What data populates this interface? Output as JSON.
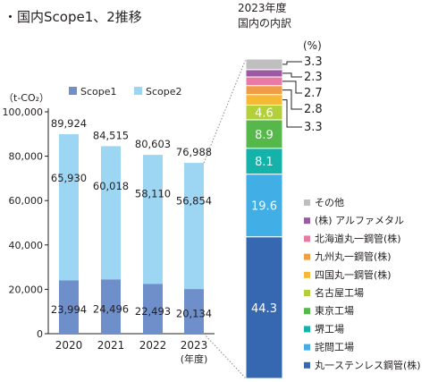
{
  "header": {
    "title": "・国内Scope1、2推移",
    "right_title_line1": "2023年度",
    "right_title_line2": "国内の内訳"
  },
  "chart_data": [
    {
      "type": "bar",
      "stacked": true,
      "title": "・国内Scope1、2推移",
      "ylabel": "（t-CO₂）",
      "x_suffix": "(年度)",
      "categories": [
        "2020",
        "2021",
        "2022",
        "2023"
      ],
      "series": [
        {
          "name": "Scope1",
          "color": "#6f8fcb",
          "values": [
            23994,
            24496,
            22493,
            20134
          ]
        },
        {
          "name": "Scope2",
          "color": "#9dd6f3",
          "values": [
            65930,
            60018,
            58110,
            56854
          ]
        }
      ],
      "totals": [
        89924,
        84515,
        80603,
        76988
      ],
      "value_labels": {
        "scope1": [
          "23,994",
          "24,496",
          "22,493",
          "20,134"
        ],
        "scope2": [
          "65,930",
          "60,018",
          "58,110",
          "56,854"
        ],
        "totals": [
          "89,924",
          "84,515",
          "80,603",
          "76,988"
        ]
      },
      "ylim": [
        0,
        100000
      ],
      "yticks": [
        "0",
        "20,000",
        "40,000",
        "60,000",
        "80,000",
        "100,000"
      ],
      "legend_position": "top",
      "grid": false
    },
    {
      "type": "bar",
      "stacked": true,
      "title": "2023年度 国内の内訳",
      "unit": "(%)",
      "segments": [
        {
          "label": "丸一ステンレス鋼管(株)",
          "value": 44.3,
          "display": "44.3",
          "color": "#3568b0"
        },
        {
          "label": "詫間工場",
          "value": 19.6,
          "display": "19.6",
          "color": "#41aee6"
        },
        {
          "label": "堺工場",
          "value": 8.1,
          "display": "8.1",
          "color": "#14b2a8"
        },
        {
          "label": "東京工場",
          "value": 8.9,
          "display": "8.9",
          "color": "#56b84a"
        },
        {
          "label": "名古屋工場",
          "value": 4.6,
          "display": "4.6",
          "color": "#b3cf3b"
        },
        {
          "label": "四国丸一鋼管(株)",
          "value": 3.3,
          "display": "3.3",
          "color": "#f5b937"
        },
        {
          "label": "九州丸一鋼管(株)",
          "value": 2.8,
          "display": "2.8",
          "color": "#f09d48"
        },
        {
          "label": "北海道丸一鋼管(株)",
          "value": 2.7,
          "display": "2.7",
          "color": "#e97aa4"
        },
        {
          "label": "(株) アルファメタル",
          "value": 2.3,
          "display": "2.3",
          "color": "#9c5aa3"
        },
        {
          "label": "その他",
          "value": 3.3,
          "display": "3.3",
          "color": "#bfbfbf"
        }
      ]
    }
  ]
}
